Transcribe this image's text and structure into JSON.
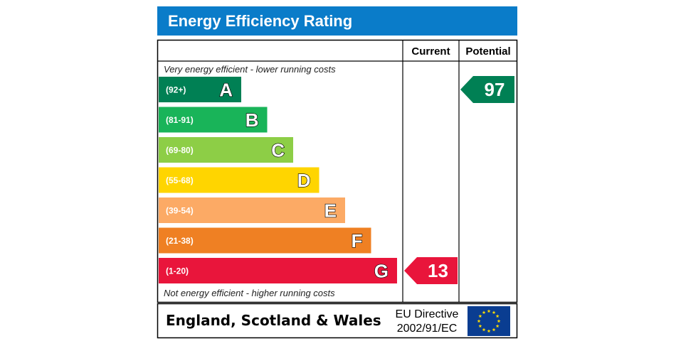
{
  "chart_data": {
    "type": "bar",
    "title": "Energy Efficiency Rating",
    "columns": [
      "Current",
      "Potential"
    ],
    "top_note": "Very energy efficient - lower running costs",
    "bottom_note": "Not energy efficient - higher running costs",
    "categories": [
      "A",
      "B",
      "C",
      "D",
      "E",
      "F",
      "G"
    ],
    "bands": [
      {
        "letter": "A",
        "range": "(92+)",
        "color": "#008054"
      },
      {
        "letter": "B",
        "range": "(81-91)",
        "color": "#19b459"
      },
      {
        "letter": "C",
        "range": "(69-80)",
        "color": "#8dce46"
      },
      {
        "letter": "D",
        "range": "(55-68)",
        "color": "#ffd500"
      },
      {
        "letter": "E",
        "range": "(39-54)",
        "color": "#fcaa65"
      },
      {
        "letter": "F",
        "range": "(21-38)",
        "color": "#ef8023"
      },
      {
        "letter": "G",
        "range": "(1-20)",
        "color": "#e9153b"
      }
    ],
    "series": [
      {
        "name": "Current",
        "value": 13,
        "band": "G",
        "color": "#e9153b"
      },
      {
        "name": "Potential",
        "value": 97,
        "band": "A",
        "color": "#008054"
      }
    ],
    "footer": {
      "region": "England, Scotland & Wales",
      "directive_line1": "EU Directive",
      "directive_line2": "2002/91/EC"
    },
    "title_color": "#0a7cc9"
  }
}
